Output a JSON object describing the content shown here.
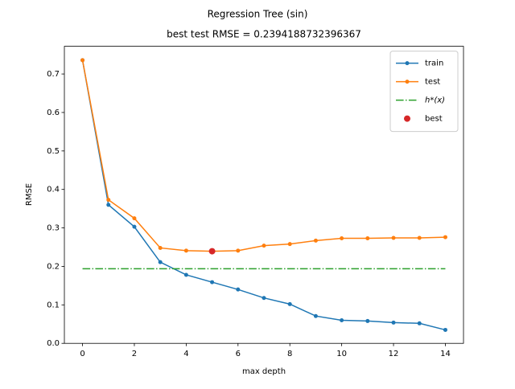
{
  "chart_data": {
    "type": "line",
    "title": "Regression Tree (sin)",
    "subtitle": "best test RMSE = 0.2394188732396367",
    "xlabel": "max depth",
    "ylabel": "RMSE",
    "x": [
      0,
      1,
      2,
      3,
      4,
      5,
      6,
      7,
      8,
      9,
      10,
      11,
      12,
      13,
      14
    ],
    "xlim": [
      -0.7,
      14.7
    ],
    "xticks": [
      0,
      2,
      4,
      6,
      8,
      10,
      12,
      14
    ],
    "ylim": [
      0,
      0.772
    ],
    "yticks": [
      0.0,
      0.1,
      0.2,
      0.3,
      0.4,
      0.5,
      0.6,
      0.7
    ],
    "legend": "upper right",
    "series": [
      {
        "name": "train",
        "color": "#1f77b4",
        "style": "line-marker",
        "values": [
          0.736,
          0.36,
          0.303,
          0.211,
          0.178,
          0.159,
          0.14,
          0.118,
          0.102,
          0.071,
          0.06,
          0.058,
          0.054,
          0.052,
          0.035
        ]
      },
      {
        "name": "test",
        "color": "#ff7f0e",
        "style": "line-marker",
        "values": [
          0.736,
          0.373,
          0.325,
          0.248,
          0.241,
          0.2394,
          0.241,
          0.254,
          0.258,
          0.267,
          0.273,
          0.273,
          0.274,
          0.274,
          0.276
        ]
      },
      {
        "name": "h*(x)",
        "color": "#2ca02c",
        "style": "dashdot",
        "x": [
          0,
          14
        ],
        "values": [
          0.194,
          0.194
        ]
      },
      {
        "name": "best",
        "color": "#d62728",
        "style": "point",
        "x": [
          5
        ],
        "values": [
          0.2394188732396367
        ]
      }
    ]
  }
}
